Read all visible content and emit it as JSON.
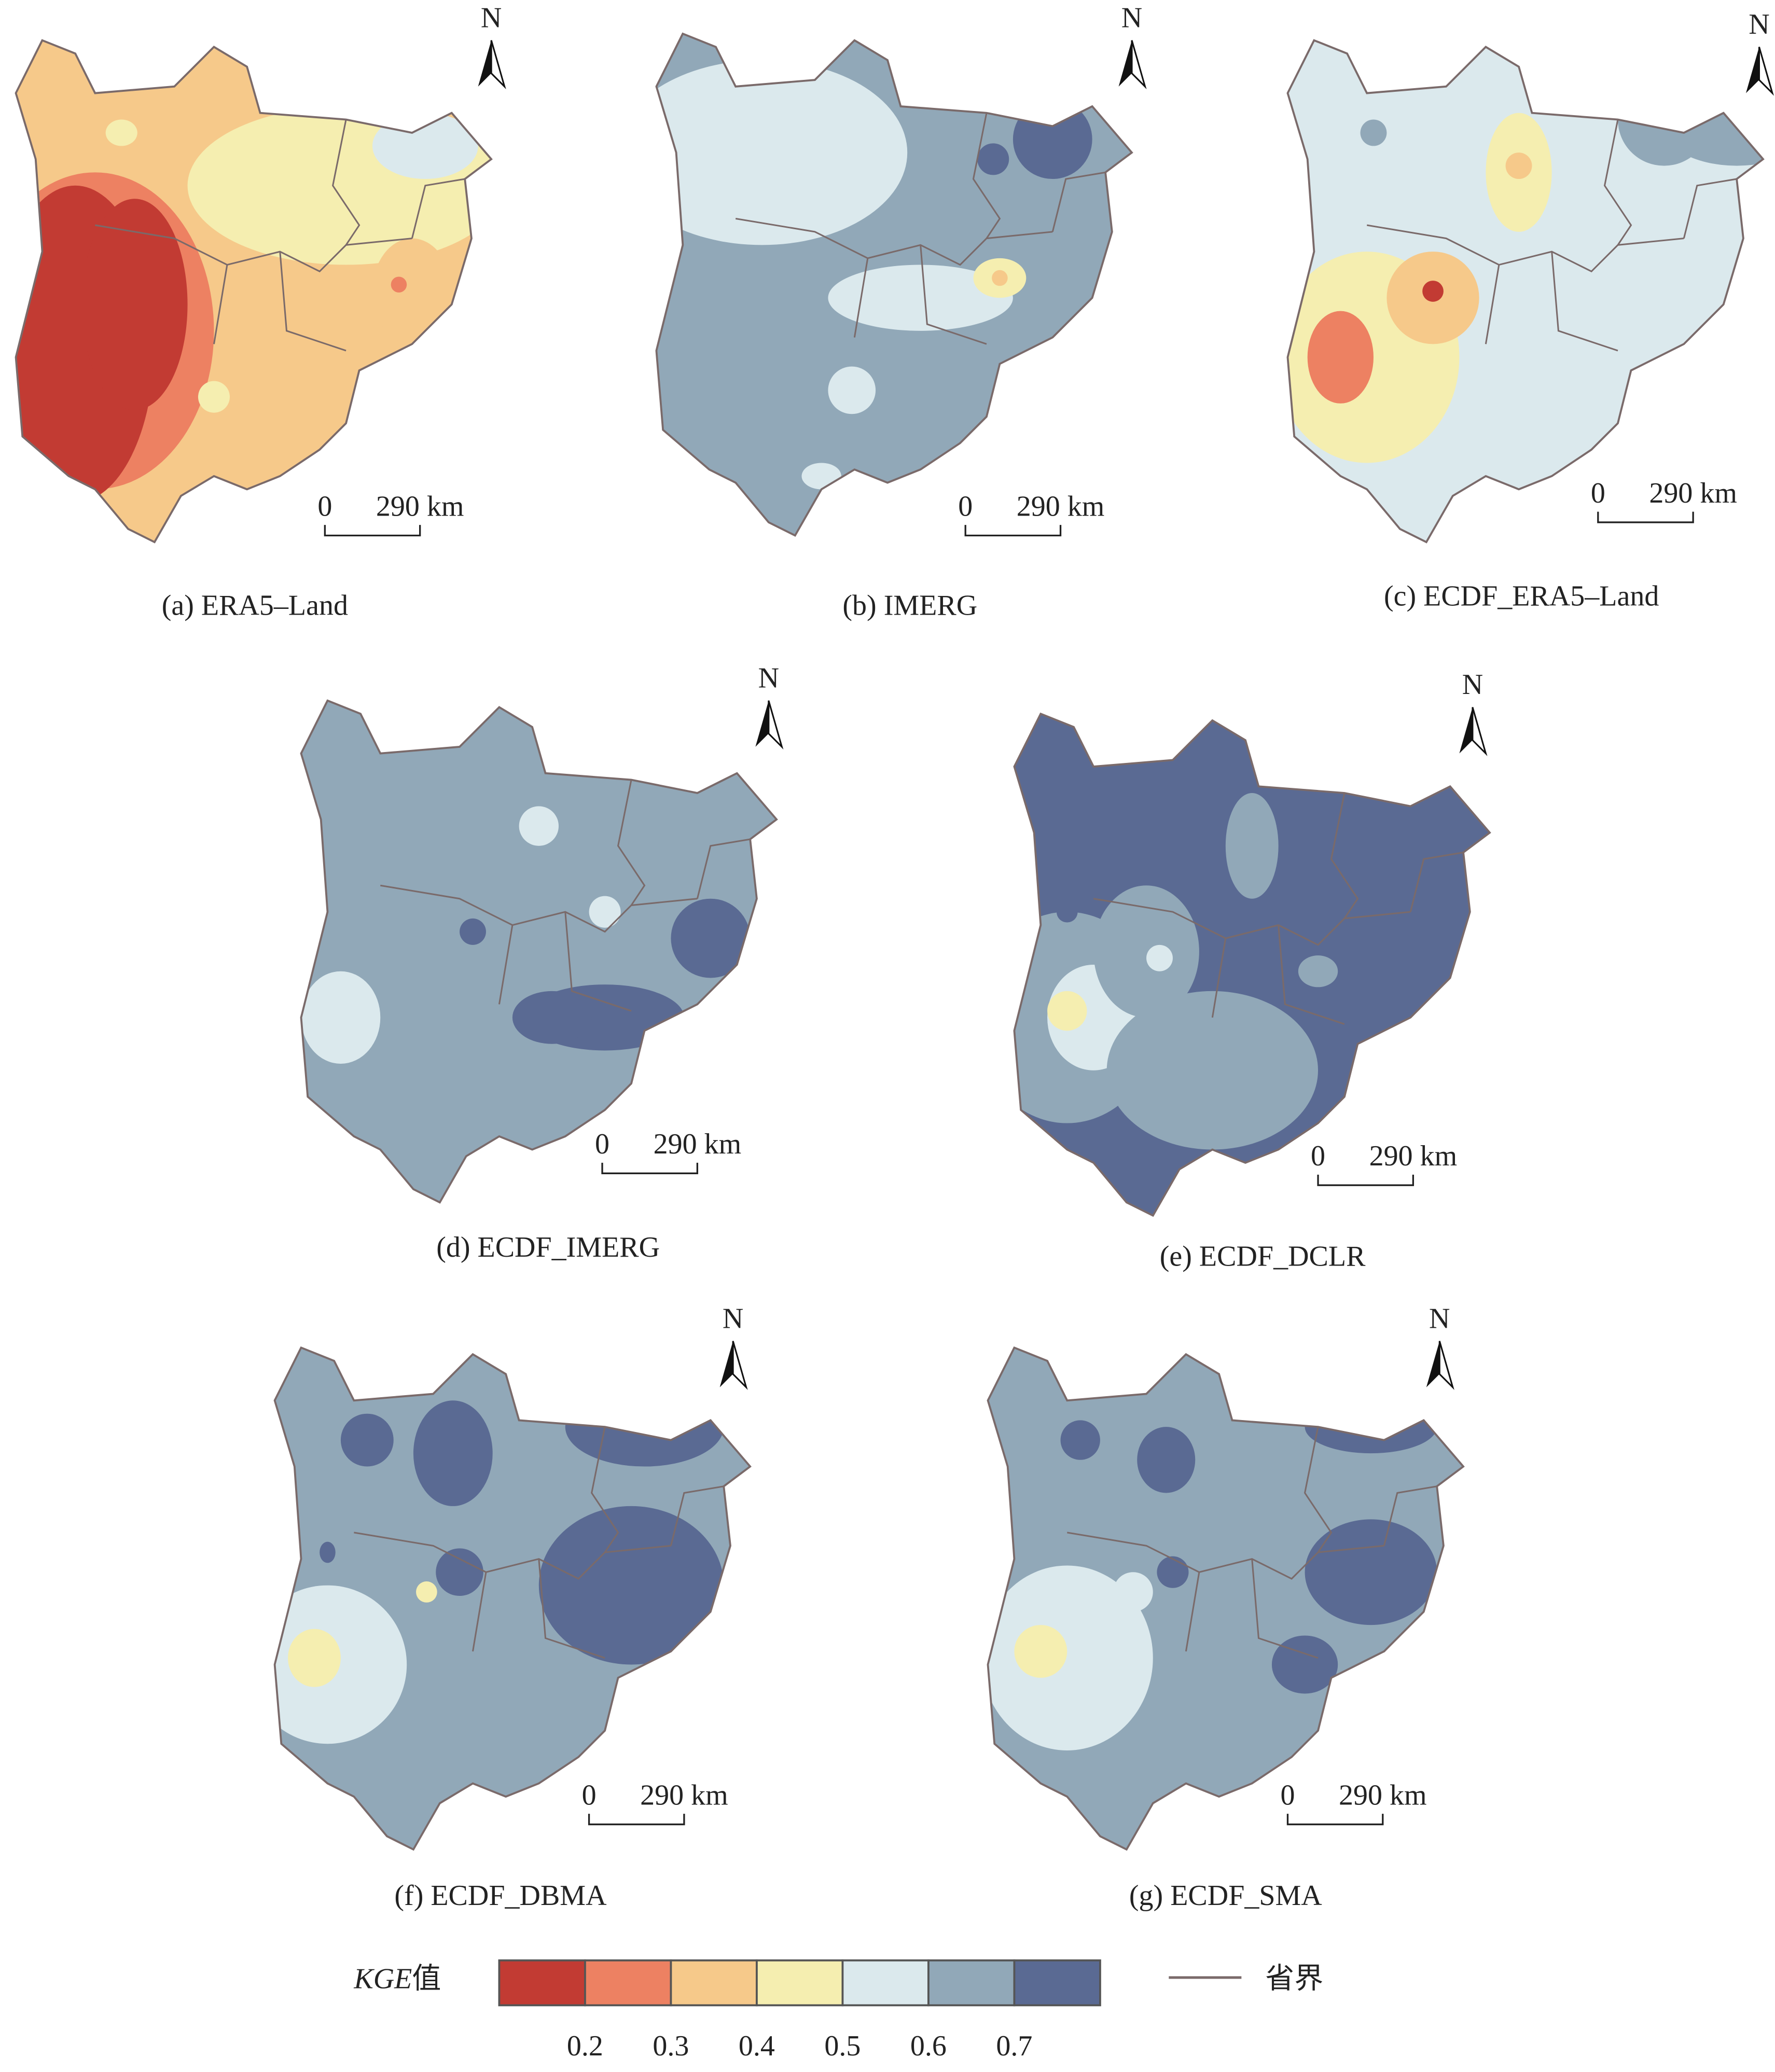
{
  "panels": [
    {
      "label": "(a) ERA5–Land"
    },
    {
      "label": "(b) IMERG"
    },
    {
      "label": "(c) ECDF_ERA5–Land"
    },
    {
      "label": "(d) ECDF_IMERG"
    },
    {
      "label": "(e) ECDF_DCLR"
    },
    {
      "label": "(f) ECDF_DBMA"
    },
    {
      "label": "(g) ECDF_SMA"
    }
  ],
  "north": "N",
  "scale_bar": {
    "start": "0",
    "end": "290 km"
  },
  "legend": {
    "title_italic": "KGE",
    "title_suffix": "值",
    "colors": [
      "#c23b33",
      "#ed8162",
      "#f6c98a",
      "#f5eeb0",
      "#dbe9ed",
      "#91a8b8",
      "#5a6a93"
    ],
    "ticks": [
      0.2,
      0.3,
      0.4,
      0.5,
      0.6,
      0.7
    ],
    "boundary_label": "省界"
  }
}
